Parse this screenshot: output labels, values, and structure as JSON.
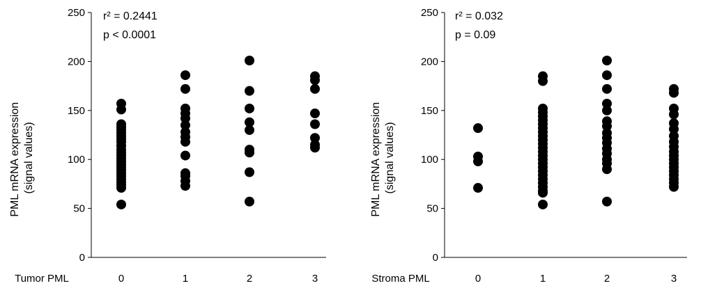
{
  "chart_data": [
    {
      "type": "scatter",
      "xlabel": "Tumor PML",
      "ylabel": "PML mRNA expression\n(signal values)",
      "categories": [
        "0",
        "1",
        "2",
        "3"
      ],
      "ylim": [
        0,
        250
      ],
      "yticks": [
        "0",
        "50",
        "100",
        "150",
        "200",
        "250"
      ],
      "annotations": [
        "r² = 0.2441",
        "p < 0.0001"
      ],
      "grid": false,
      "series": [
        {
          "x": "0",
          "values": [
            157,
            151,
            136,
            133,
            130,
            127,
            124,
            121,
            118,
            114,
            110,
            107,
            104,
            101,
            98,
            95,
            92,
            89,
            86,
            83,
            80,
            77,
            74,
            71,
            54
          ]
        },
        {
          "x": "1",
          "values": [
            186,
            172,
            152,
            147,
            142,
            135,
            128,
            123,
            118,
            104,
            86,
            83,
            78,
            73
          ]
        },
        {
          "x": "2",
          "values": [
            201,
            170,
            152,
            138,
            130,
            110,
            107,
            87,
            57
          ]
        },
        {
          "x": "3",
          "values": [
            185,
            181,
            172,
            147,
            136,
            122,
            115,
            112
          ]
        }
      ]
    },
    {
      "type": "scatter",
      "xlabel": "Stroma PML",
      "ylabel": "PML mRNA expression\n(signal values)",
      "categories": [
        "0",
        "1",
        "2",
        "3"
      ],
      "ylim": [
        0,
        250
      ],
      "yticks": [
        "0",
        "50",
        "100",
        "150",
        "200",
        "250"
      ],
      "annotations": [
        "r² = 0.032",
        "p = 0.09"
      ],
      "grid": false,
      "series": [
        {
          "x": "0",
          "values": [
            132,
            103,
            98,
            71
          ]
        },
        {
          "x": "1",
          "values": [
            185,
            180,
            152,
            148,
            144,
            140,
            136,
            132,
            128,
            124,
            120,
            116,
            112,
            108,
            104,
            100,
            96,
            92,
            88,
            84,
            80,
            76,
            72,
            68,
            66,
            54
          ]
        },
        {
          "x": "2",
          "values": [
            201,
            186,
            172,
            157,
            150,
            139,
            134,
            127,
            122,
            117,
            111,
            106,
            100,
            96,
            90,
            57
          ]
        },
        {
          "x": "3",
          "values": [
            172,
            168,
            152,
            146,
            137,
            131,
            124,
            118,
            113,
            108,
            104,
            100,
            96,
            92,
            88,
            84,
            80,
            76,
            72
          ]
        }
      ]
    }
  ]
}
